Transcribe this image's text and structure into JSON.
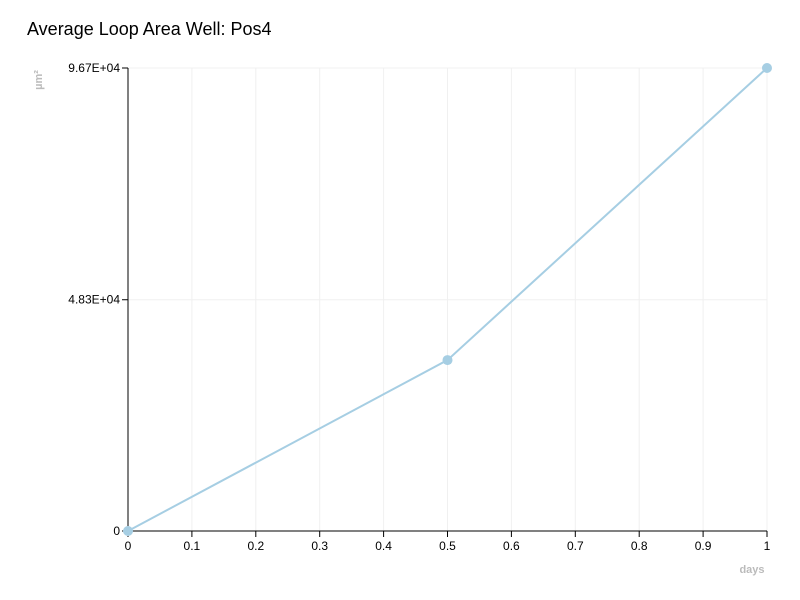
{
  "chart_data": {
    "type": "line",
    "title": "Average Loop Area Well: Pos4",
    "x_label": "days",
    "y_label": "µm²",
    "x": [
      0,
      0.5,
      1
    ],
    "series": [
      {
        "name": "Pos4",
        "color": "#a6cee3",
        "values": [
          0,
          35700,
          96700
        ]
      }
    ],
    "xlim": [
      0,
      1
    ],
    "xticks": [
      0,
      0.1,
      0.2,
      0.3,
      0.4,
      0.5,
      0.6,
      0.7,
      0.8,
      0.9,
      1
    ],
    "ylim": [
      0,
      96700
    ],
    "yticks": [
      0,
      {
        "value": 48300,
        "label": "4.83E+04"
      },
      {
        "value": 96700,
        "label": "9.67E+04"
      }
    ],
    "grid": true
  }
}
